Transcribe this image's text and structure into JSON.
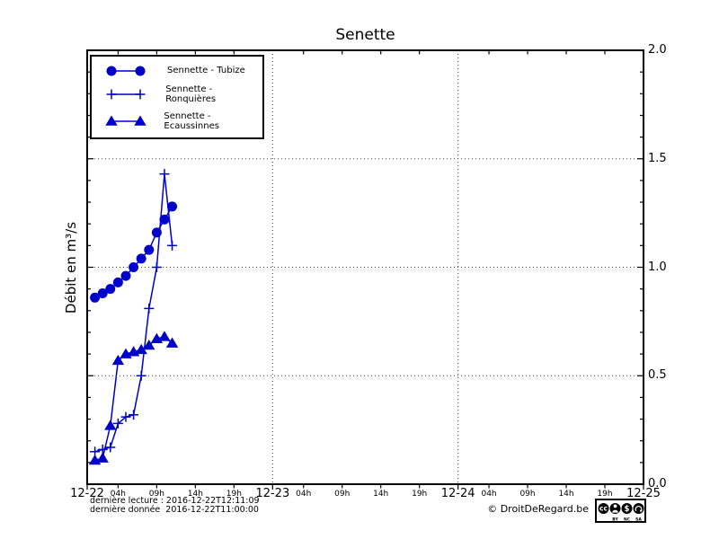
{
  "title": "Senette",
  "y_axis": {
    "label": "Débit en m³/s",
    "ticks": [
      "0.0",
      "0.5",
      "1.0",
      "1.5",
      "2.0"
    ],
    "tick_values": [
      0,
      0.5,
      1.0,
      1.5,
      2.0
    ]
  },
  "x_axis": {
    "day_labels": [
      "12-22",
      "12-23",
      "12-24",
      "12-25"
    ],
    "hour_labels": [
      "04h",
      "09h",
      "14h",
      "19h"
    ],
    "hour_values": [
      4,
      9,
      14,
      19
    ]
  },
  "legend": {
    "items": [
      {
        "label": "Sennette - Tubize",
        "marker": "circle"
      },
      {
        "label": "Sennette - Ronquières",
        "marker": "plus"
      },
      {
        "label": "Sennette - Ecaussinnes",
        "marker": "triangle"
      }
    ]
  },
  "footer": {
    "last_reading": "dernière lecture : 2016-12-22T12:11:09",
    "last_data": "dernière donnée  2016-12-22T11:00:00",
    "copyright": "© DroitDeRegard.be",
    "license": {
      "cc": "cc",
      "by": "BY",
      "nc": "NC",
      "sa": "SA",
      "nc_glyph": "$"
    }
  },
  "colors": {
    "series": "#0000cc",
    "axis": "#000000",
    "grid": "#3c3c3c",
    "background": "#ffffff"
  },
  "chart_data": {
    "type": "line",
    "title": "Senette",
    "xlabel": "",
    "ylabel": "Débit en m³/s",
    "ylim": [
      0,
      2.0
    ],
    "x_start_label": "12-22",
    "x_end_label": "12-25",
    "x_span_hours": 72,
    "x_hours": [
      1,
      2,
      3,
      4,
      5,
      6,
      7,
      8,
      9,
      10,
      11
    ],
    "series": [
      {
        "name": "Sennette - Tubize",
        "marker": "circle",
        "values": [
          0.86,
          0.88,
          0.9,
          0.93,
          0.96,
          1.0,
          1.04,
          1.08,
          1.16,
          1.22,
          1.28
        ]
      },
      {
        "name": "Sennette - Ronquières",
        "marker": "plus",
        "values": [
          0.15,
          0.16,
          0.17,
          0.28,
          0.31,
          0.32,
          0.5,
          0.81,
          1.0,
          1.43,
          1.1
        ]
      },
      {
        "name": "Sennette - Ecaussinnes",
        "marker": "triangle",
        "values": [
          0.11,
          0.12,
          0.27,
          0.57,
          0.6,
          0.61,
          0.62,
          0.64,
          0.67,
          0.68,
          0.65
        ]
      }
    ],
    "grid": {
      "horizontal_at": [
        0.5,
        1.0,
        1.5
      ],
      "vertical_at_day_boundaries": [
        "12-23",
        "12-24"
      ],
      "style": "dotted"
    },
    "legend_position": "upper left",
    "y_ticks_side": "right"
  }
}
